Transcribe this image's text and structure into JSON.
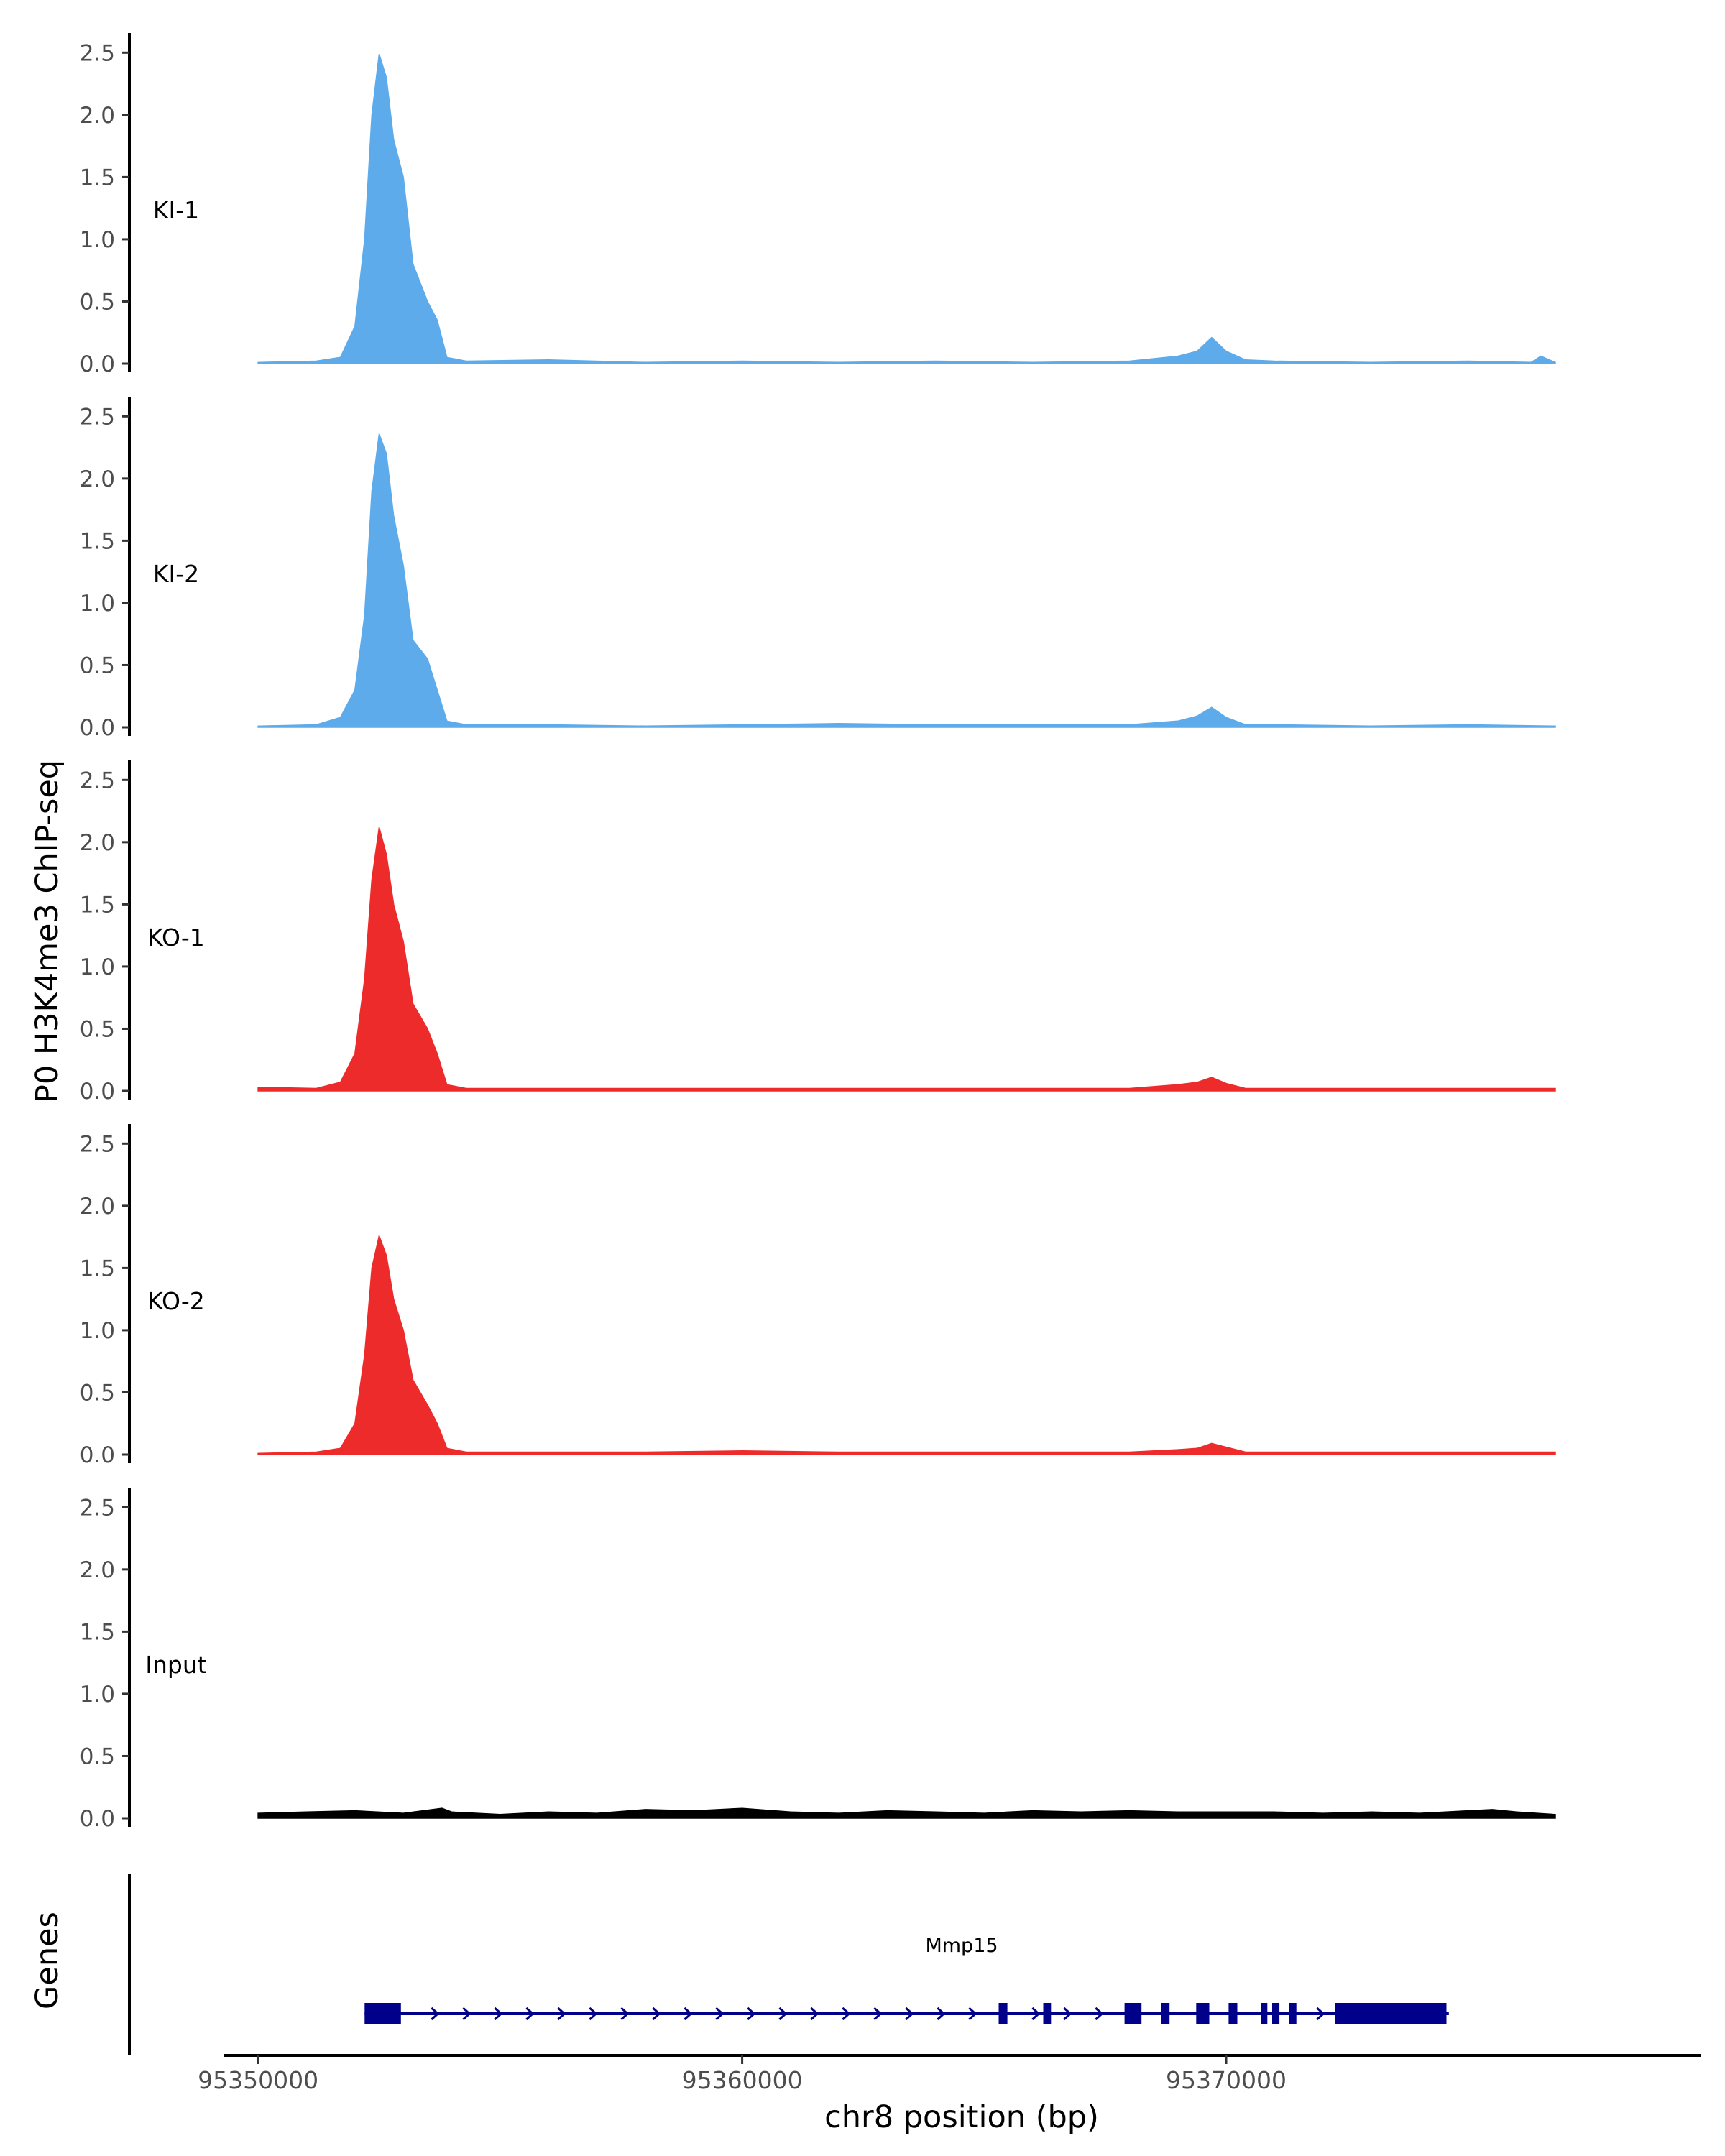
{
  "chart_data": {
    "type": "area",
    "ylabel": "P0 H3K4me3 ChIP-seq",
    "xlabel": "chr8 position (bp)",
    "genes_axis_label": "Genes",
    "ylim": [
      0,
      2.6
    ],
    "yticks": [
      0.0,
      0.5,
      1.0,
      1.5,
      2.0,
      2.5
    ],
    "ytick_labels": [
      "0.0",
      "0.5",
      "1.0",
      "1.5",
      "2.0",
      "2.5"
    ],
    "xlim": [
      95349300,
      95379800
    ],
    "xticks": [
      95350000,
      95360000,
      95370000
    ],
    "xtick_labels": [
      "95350000",
      "95360000",
      "95370000"
    ],
    "series": [
      {
        "name": "KI-1",
        "color": "#5dabeb",
        "x": [
          95350000,
          95351200,
          95351700,
          95352000,
          95352200,
          95352350,
          95352500,
          95352650,
          95352800,
          95353000,
          95353200,
          95353500,
          95353700,
          95353900,
          95354300,
          95356000,
          95358000,
          95360000,
          95362000,
          95364000,
          95366000,
          95368000,
          95369000,
          95369400,
          95369700,
          95370000,
          95370400,
          95371000,
          95373000,
          95375000,
          95376300,
          95376500,
          95376800
        ],
        "values": [
          0.01,
          0.02,
          0.05,
          0.3,
          1.0,
          2.0,
          2.49,
          2.3,
          1.8,
          1.5,
          0.8,
          0.5,
          0.35,
          0.05,
          0.02,
          0.03,
          0.01,
          0.02,
          0.01,
          0.02,
          0.01,
          0.02,
          0.06,
          0.1,
          0.21,
          0.1,
          0.03,
          0.02,
          0.01,
          0.02,
          0.01,
          0.06,
          0.01
        ]
      },
      {
        "name": "KI-2",
        "color": "#5dabeb",
        "x": [
          95350000,
          95351200,
          95351700,
          95352000,
          95352200,
          95352350,
          95352500,
          95352650,
          95352800,
          95353000,
          95353200,
          95353500,
          95353700,
          95353900,
          95354300,
          95356000,
          95358000,
          95360000,
          95362000,
          95364000,
          95366000,
          95368000,
          95369000,
          95369400,
          95369700,
          95370000,
          95370400,
          95371000,
          95373000,
          95375000,
          95376800
        ],
        "values": [
          0.01,
          0.02,
          0.08,
          0.3,
          0.9,
          1.9,
          2.36,
          2.2,
          1.7,
          1.3,
          0.7,
          0.55,
          0.3,
          0.05,
          0.02,
          0.02,
          0.01,
          0.02,
          0.03,
          0.02,
          0.02,
          0.02,
          0.05,
          0.09,
          0.16,
          0.08,
          0.02,
          0.02,
          0.01,
          0.02,
          0.01
        ]
      },
      {
        "name": "KO-1",
        "color": "#ee2b2b",
        "x": [
          95350000,
          95351200,
          95351700,
          95352000,
          95352200,
          95352350,
          95352500,
          95352650,
          95352800,
          95353000,
          95353200,
          95353500,
          95353700,
          95353900,
          95354300,
          95356000,
          95358000,
          95360000,
          95362000,
          95364000,
          95366000,
          95368000,
          95369000,
          95369400,
          95369700,
          95370000,
          95370400,
          95371000,
          95373000,
          95375000,
          95376800
        ],
        "values": [
          0.03,
          0.02,
          0.07,
          0.3,
          0.9,
          1.7,
          2.12,
          1.9,
          1.5,
          1.2,
          0.7,
          0.5,
          0.3,
          0.05,
          0.02,
          0.02,
          0.02,
          0.02,
          0.02,
          0.02,
          0.02,
          0.02,
          0.05,
          0.07,
          0.11,
          0.06,
          0.02,
          0.02,
          0.02,
          0.02,
          0.02
        ]
      },
      {
        "name": "KO-2",
        "color": "#ee2b2b",
        "x": [
          95350000,
          95351200,
          95351700,
          95352000,
          95352200,
          95352350,
          95352500,
          95352650,
          95352800,
          95353000,
          95353200,
          95353500,
          95353700,
          95353900,
          95354300,
          95356000,
          95358000,
          95360000,
          95362000,
          95364000,
          95366000,
          95368000,
          95369000,
          95369400,
          95369700,
          95370000,
          95370400,
          95371000,
          95373000,
          95375000,
          95376800
        ],
        "values": [
          0.01,
          0.02,
          0.05,
          0.25,
          0.8,
          1.5,
          1.76,
          1.6,
          1.25,
          1.0,
          0.6,
          0.4,
          0.25,
          0.05,
          0.02,
          0.02,
          0.02,
          0.03,
          0.02,
          0.02,
          0.02,
          0.02,
          0.04,
          0.05,
          0.09,
          0.06,
          0.02,
          0.02,
          0.02,
          0.02,
          0.02
        ]
      },
      {
        "name": "Input",
        "color": "#000000",
        "x": [
          95350000,
          95351000,
          95352000,
          95353000,
          95353800,
          95354000,
          95355000,
          95356000,
          95357000,
          95358000,
          95359000,
          95360000,
          95361000,
          95362000,
          95363000,
          95364000,
          95365000,
          95366000,
          95367000,
          95368000,
          95369000,
          95370000,
          95371000,
          95372000,
          95373000,
          95374000,
          95375000,
          95375500,
          95376000,
          95376800
        ],
        "values": [
          0.04,
          0.05,
          0.06,
          0.04,
          0.08,
          0.05,
          0.03,
          0.05,
          0.04,
          0.07,
          0.06,
          0.08,
          0.05,
          0.04,
          0.06,
          0.05,
          0.04,
          0.06,
          0.05,
          0.06,
          0.05,
          0.05,
          0.05,
          0.04,
          0.05,
          0.04,
          0.06,
          0.07,
          0.05,
          0.03
        ]
      }
    ],
    "gene": {
      "name": "Mmp15",
      "color": "#00008b",
      "start": 95352200,
      "end": 95374600,
      "strand": "+",
      "exons": [
        {
          "start": 95352200,
          "end": 95352950
        },
        {
          "start": 95365300,
          "end": 95365480
        },
        {
          "start": 95366220,
          "end": 95366380
        },
        {
          "start": 95367900,
          "end": 95368250
        },
        {
          "start": 95368650,
          "end": 95368830
        },
        {
          "start": 95369380,
          "end": 95369650
        },
        {
          "start": 95370050,
          "end": 95370230
        },
        {
          "start": 95370720,
          "end": 95370850
        },
        {
          "start": 95370950,
          "end": 95371100
        },
        {
          "start": 95371300,
          "end": 95371450
        },
        {
          "start": 95372250,
          "end": 95374550
        }
      ]
    }
  }
}
